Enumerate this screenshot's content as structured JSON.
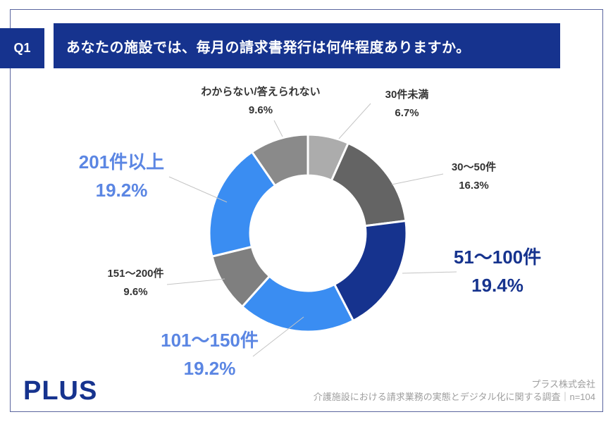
{
  "header": {
    "q_label": "Q1",
    "title": "あなたの施設では、毎月の請求書発行は何件程度ありますか。"
  },
  "chart_data": {
    "type": "donut",
    "title": "あなたの施設では、毎月の請求書発行は何件程度ありますか。",
    "unit": "%",
    "start_angle_deg": 0,
    "direction": "clockwise",
    "inner_radius_ratio": 0.585,
    "legend_position": "around-labels",
    "segments": [
      {
        "label": "30件未満",
        "value": 6.7,
        "pct_label": "6.7%",
        "color": "#ACACAC"
      },
      {
        "label": "30〜50件",
        "value": 16.3,
        "pct_label": "16.3%",
        "color": "#646464"
      },
      {
        "label": "51〜100件",
        "value": 19.4,
        "pct_label": "19.4%",
        "color": "#16338E"
      },
      {
        "label": "101〜150件",
        "value": 19.2,
        "pct_label": "19.2%",
        "color": "#3A8DF2"
      },
      {
        "label": "151〜200件",
        "value": 9.6,
        "pct_label": "9.6%",
        "color": "#7F7F7F"
      },
      {
        "label": "201件以上",
        "value": 19.2,
        "pct_label": "19.2%",
        "color": "#3A8DF2"
      },
      {
        "label": "わからない/答えられない",
        "value": 9.6,
        "pct_label": "9.6%",
        "color": "#8A8A8A"
      }
    ]
  },
  "colors": {
    "navy": "#16338E",
    "bright_blue": "#3A8DF2",
    "label_blue": "#5B86E3",
    "frame": "#5A659E"
  },
  "footer": {
    "logo": "PLUS",
    "company": "プラス株式会社",
    "survey": "介護施設における請求業務の実態とデジタル化に関する調査｜n=104"
  }
}
